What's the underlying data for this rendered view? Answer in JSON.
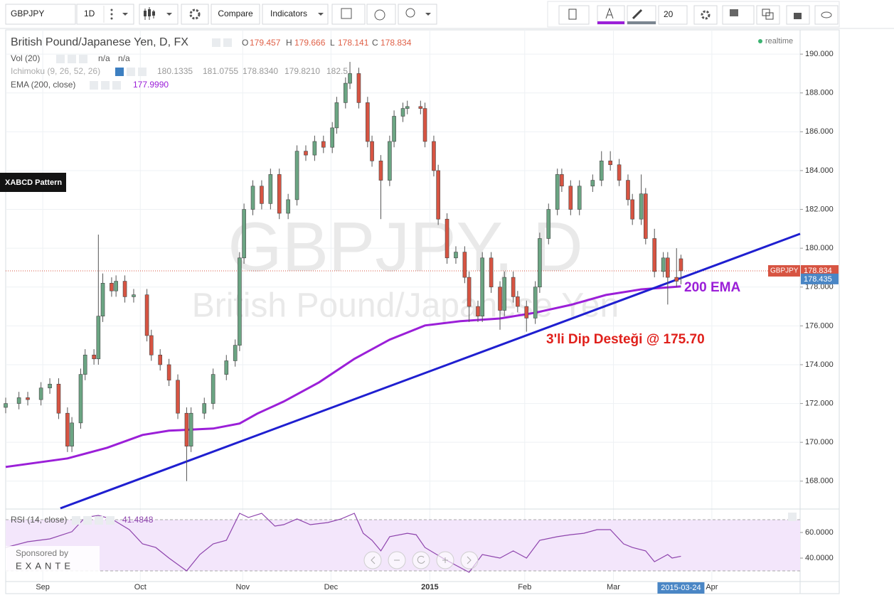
{
  "toolbar": {
    "symbol": "GBPJPY",
    "interval": "1D",
    "compare": "Compare",
    "indicators": "Indicators",
    "font_size": "20"
  },
  "left_label": "XABCD Pattern",
  "realtime": "realtime",
  "sponsor": {
    "label": "Sponsored by",
    "name": "EXANTE"
  },
  "indicators": [
    {
      "name": "Vol (20)",
      "values": [
        "n/a",
        "n/a"
      ]
    },
    {
      "name": "Ichimoku (9, 26, 52, 26)",
      "values": [
        "180.1335",
        "181.0755",
        "178.8340",
        "179.8210",
        "182.5"
      ]
    }
  ],
  "chart_data": [
    {
      "type": "candlestick",
      "title": "British Pound/Japanese Yen, D, FX",
      "watermark": "GBPJPY, D",
      "watermark_subtitle": "British Pound/Japanese Yen",
      "ohlc_labels": [
        "O",
        "H",
        "L",
        "C"
      ],
      "x": [
        0,
        3,
        5,
        8,
        10,
        12,
        14,
        15,
        17,
        18,
        20,
        21,
        22,
        24,
        25,
        27,
        29,
        32,
        33,
        35,
        37,
        39,
        41,
        42,
        45,
        47,
        50,
        52,
        53,
        54,
        56,
        58,
        60,
        62,
        64,
        66,
        68,
        70,
        72,
        74,
        75,
        77,
        78,
        80,
        82,
        83,
        85,
        87,
        88,
        90,
        91,
        94,
        95,
        97,
        98,
        100,
        102,
        104,
        105,
        107,
        108,
        110,
        112,
        113,
        115,
        116,
        118,
        120,
        121,
        123,
        125,
        126,
        128,
        130,
        133,
        135,
        137,
        139,
        141,
        142,
        144,
        145,
        147,
        149,
        150,
        152,
        153
      ],
      "open": [
        171.8,
        172.0,
        172.3,
        172.2,
        172.8,
        173.0,
        171.5,
        169.8,
        171.0,
        173.5,
        174.5,
        174.3,
        176.5,
        178.2,
        177.8,
        178.3,
        177.5,
        177.6,
        175.5,
        174.5,
        174.0,
        173.2,
        171.5,
        169.8,
        171.5,
        172.0,
        173.5,
        174.2,
        175.0,
        179.5,
        182.0,
        183.2,
        182.3,
        183.8,
        181.8,
        182.5,
        185.0,
        184.8,
        185.5,
        185.2,
        186.2,
        187.5,
        188.5,
        189.0,
        187.5,
        185.5,
        184.5,
        183.5,
        185.5,
        186.8,
        187.2,
        187.3,
        187.2,
        185.5,
        184.0,
        181.5,
        179.5,
        179.8,
        178.5,
        177.0,
        176.5,
        179.5,
        178.0,
        176.8,
        178.5,
        177.5,
        177.0,
        176.4,
        178.0,
        180.5,
        182.0,
        183.8,
        183.2,
        182.0,
        183.2,
        183.5,
        184.5,
        184.3,
        183.5,
        182.5,
        181.5,
        182.8,
        180.5,
        178.8,
        179.5,
        178.5,
        179.457
      ],
      "high": [
        172.3,
        172.6,
        172.6,
        173.1,
        173.3,
        173.3,
        171.8,
        171.3,
        173.8,
        174.8,
        174.8,
        180.7,
        178.7,
        178.5,
        178.6,
        178.6,
        177.9,
        177.9,
        175.8,
        174.8,
        174.3,
        173.5,
        171.8,
        171.8,
        172.3,
        173.8,
        174.5,
        175.3,
        179.8,
        182.3,
        183.5,
        183.5,
        184.1,
        184.1,
        182.8,
        185.3,
        185.3,
        185.8,
        185.8,
        186.5,
        187.8,
        188.8,
        189.6,
        189.3,
        187.8,
        185.8,
        184.8,
        185.8,
        187.1,
        187.5,
        187.6,
        187.6,
        187.5,
        185.8,
        184.3,
        181.8,
        180.1,
        180.1,
        178.8,
        177.3,
        179.8,
        179.8,
        178.3,
        178.8,
        178.8,
        177.8,
        177.3,
        178.3,
        180.8,
        182.3,
        184.1,
        184.1,
        183.5,
        183.5,
        183.8,
        185.0,
        185.0,
        184.6,
        183.8,
        182.8,
        183.8,
        183.1,
        181.0,
        179.8,
        179.8,
        180.0,
        179.666
      ],
      "low": [
        171.5,
        171.7,
        171.9,
        171.9,
        172.5,
        171.2,
        169.5,
        169.5,
        170.7,
        173.2,
        174.0,
        174.0,
        176.2,
        177.5,
        177.5,
        177.2,
        177.2,
        175.2,
        174.2,
        173.7,
        172.9,
        171.2,
        168.0,
        169.5,
        171.2,
        171.7,
        173.2,
        173.9,
        174.7,
        179.2,
        181.7,
        182.0,
        182.0,
        181.5,
        181.5,
        182.2,
        184.5,
        184.5,
        184.9,
        184.9,
        185.9,
        187.2,
        188.2,
        187.2,
        185.2,
        184.2,
        181.5,
        183.2,
        185.2,
        186.5,
        186.9,
        186.9,
        185.2,
        183.7,
        181.2,
        179.2,
        179.2,
        178.2,
        176.2,
        176.2,
        176.2,
        177.7,
        175.8,
        176.5,
        177.2,
        176.7,
        175.7,
        176.1,
        177.7,
        180.2,
        181.7,
        182.9,
        181.7,
        181.7,
        182.9,
        183.2,
        184.0,
        183.2,
        182.2,
        181.2,
        181.2,
        180.2,
        178.5,
        178.5,
        177.1,
        178.0,
        178.141
      ],
      "close": [
        172.0,
        172.3,
        172.2,
        172.8,
        173.0,
        171.5,
        169.8,
        171.0,
        173.5,
        174.5,
        174.3,
        176.5,
        178.2,
        177.8,
        178.3,
        177.5,
        177.6,
        175.5,
        174.5,
        174.0,
        173.2,
        171.5,
        169.8,
        171.5,
        172.0,
        173.5,
        174.2,
        175.0,
        179.5,
        182.0,
        183.2,
        182.3,
        183.8,
        181.8,
        182.5,
        185.0,
        184.8,
        185.5,
        185.2,
        186.2,
        187.5,
        188.5,
        189.0,
        187.5,
        185.5,
        184.5,
        183.5,
        185.5,
        186.8,
        187.2,
        187.3,
        187.2,
        185.5,
        184.0,
        181.5,
        179.5,
        179.8,
        178.5,
        177.0,
        176.5,
        179.5,
        178.0,
        176.8,
        178.5,
        177.5,
        177.0,
        176.4,
        178.0,
        180.5,
        182.0,
        183.8,
        183.2,
        182.0,
        183.2,
        183.5,
        184.5,
        184.3,
        183.5,
        182.5,
        181.5,
        182.8,
        180.5,
        178.8,
        179.5,
        178.5,
        178.3,
        178.834
      ],
      "up_color": "#6ba583",
      "down_color": "#d75442",
      "xlim": [
        0,
        180
      ],
      "ylim": [
        166.6,
        191.25
      ],
      "xticks": [
        {
          "value": 8.4,
          "label": "Sep"
        },
        {
          "value": 30.5,
          "label": "Oct"
        },
        {
          "value": 53.7,
          "label": "Nov"
        },
        {
          "value": 73.7,
          "label": "Dec"
        },
        {
          "value": 96.1,
          "label": "2015"
        },
        {
          "value": 117.6,
          "label": "Feb"
        },
        {
          "value": 137.7,
          "label": "Mar"
        },
        {
          "value": 160,
          "label": "Apr"
        }
      ],
      "yticks": [
        {
          "value": 168,
          "label": "168.000"
        },
        {
          "value": 170,
          "label": "170.000"
        },
        {
          "value": 172,
          "label": "172.000"
        },
        {
          "value": 174,
          "label": "174.000"
        },
        {
          "value": 176,
          "label": "176.000"
        },
        {
          "value": 178,
          "label": "178.000"
        },
        {
          "value": 180,
          "label": "180.000"
        },
        {
          "value": 182,
          "label": "182.000"
        },
        {
          "value": 184,
          "label": "184.000"
        },
        {
          "value": 186,
          "label": "186.000"
        },
        {
          "value": 188,
          "label": "188.000"
        },
        {
          "value": 190,
          "label": "190.000"
        }
      ],
      "grid": true,
      "overlays": [
        {
          "name": "EMA (200, close)",
          "legend_value": "177.9990",
          "color": "#9b1fd8",
          "x": [
            0,
            14,
            23,
            31,
            37,
            47,
            53,
            57,
            63,
            71,
            79,
            87,
            95,
            103,
            112,
            120,
            128,
            136,
            144,
            153
          ],
          "values": [
            168.73,
            169.17,
            169.72,
            170.38,
            170.6,
            170.71,
            170.97,
            171.48,
            172.1,
            173.09,
            174.3,
            175.29,
            176.02,
            176.24,
            176.38,
            176.68,
            177.08,
            177.59,
            177.88,
            178.03
          ]
        }
      ],
      "trendline": {
        "color": "#1f1fd0",
        "x": [
          12.4,
          180
        ],
        "values": [
          166.6,
          180.74
        ],
        "current": 178.435
      },
      "last_price_tag": "GBPJPY",
      "cursor": {
        "x": 153,
        "label": "2015-03-24"
      },
      "annotations": [
        {
          "text": "200 EMA",
          "color": "#9b1fd8"
        },
        {
          "text": "3'li Dip Desteği @ 175.70",
          "color": "#e0201b"
        }
      ]
    },
    {
      "type": "line",
      "name": "RSI (14, close)",
      "color": "#8e44ad",
      "x": [
        0,
        5,
        10,
        15,
        18,
        21,
        24,
        28,
        31,
        34,
        37,
        41,
        44,
        47,
        50,
        53,
        55,
        58,
        61,
        63,
        66,
        69,
        73,
        76,
        79,
        81,
        83,
        85,
        87,
        91,
        93,
        95,
        99,
        102,
        105,
        108,
        112,
        115,
        118,
        121,
        125,
        128,
        131,
        134,
        137,
        140,
        142,
        145,
        147,
        150,
        151,
        153
      ],
      "values": [
        48.3,
        52.8,
        55,
        60.6,
        71.7,
        73.3,
        70.6,
        62.2,
        51.1,
        48.3,
        40,
        30,
        42.8,
        51.1,
        53.9,
        75,
        71.7,
        75,
        65,
        66.1,
        70.6,
        66.1,
        67.8,
        70.6,
        75,
        59.4,
        53.9,
        45.6,
        56.7,
        59.4,
        58.3,
        48.3,
        40,
        34.4,
        28.9,
        42.8,
        40,
        45.6,
        40,
        53.9,
        56.7,
        58.3,
        59.4,
        62.2,
        62.2,
        51.1,
        48.3,
        45.6,
        37.2,
        42.8,
        40,
        41.4848
      ],
      "xlim": [
        0,
        180
      ],
      "ylim": [
        21.7,
        76.1
      ],
      "yticks": [
        {
          "value": 60,
          "label": "60.0000"
        },
        {
          "value": 40,
          "label": "40.0000"
        }
      ],
      "band": [
        30,
        70
      ],
      "band_color": "#f3e6fb"
    }
  ]
}
